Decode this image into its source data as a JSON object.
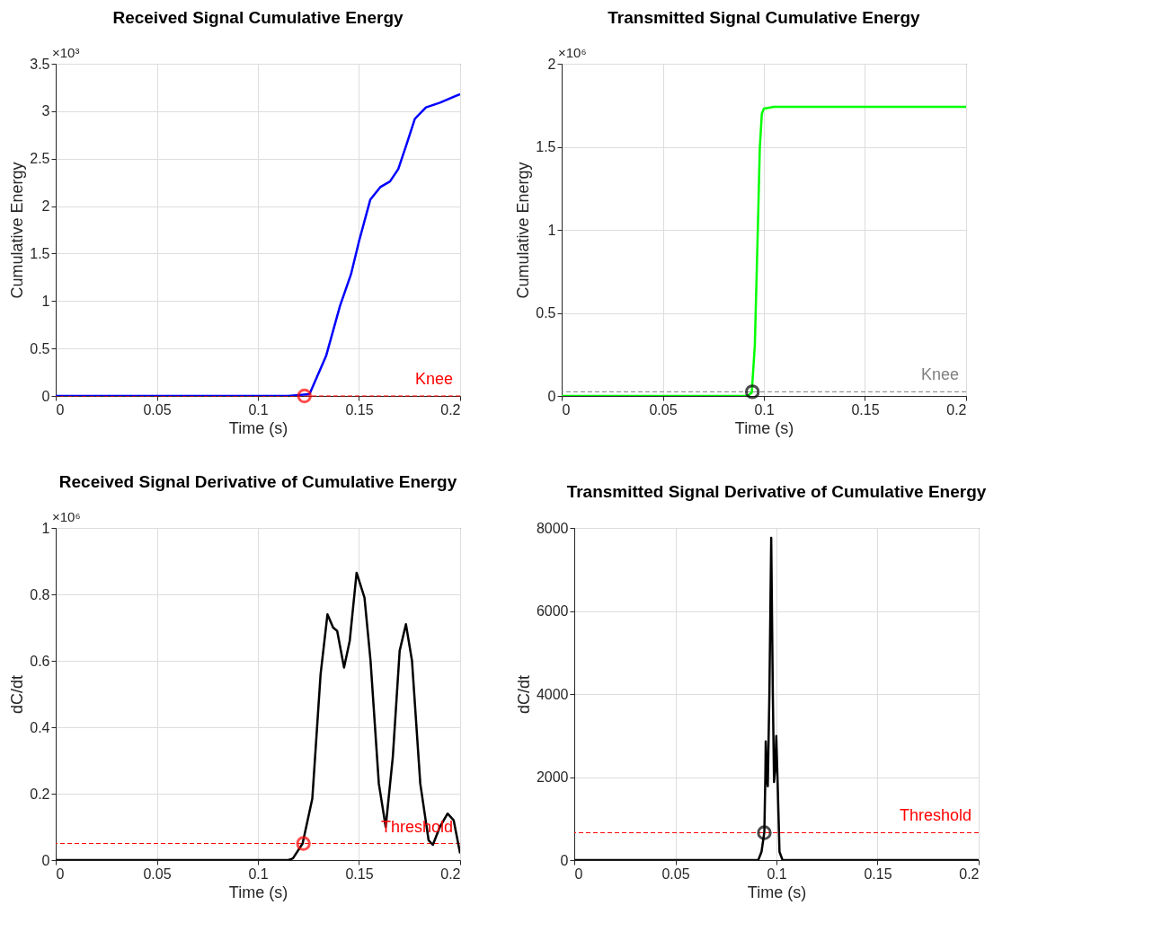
{
  "chart_data": [
    {
      "type": "line",
      "title": "Received Signal Cumulative Energy",
      "xlabel": "Time (s)",
      "ylabel": "Cumulative Energy",
      "annotations": [
        "×10³"
      ],
      "xlim": [
        0,
        0.2
      ],
      "ylim": [
        0,
        3.5
      ],
      "xticks": [
        0,
        0.05,
        0.1,
        0.15,
        0.2
      ],
      "yticks": [
        0,
        0.5,
        1,
        1.5,
        2,
        2.5,
        3,
        3.5
      ],
      "grid": true,
      "ref_lines": [
        {
          "axis": "y",
          "value": 0,
          "label": "Knee",
          "color": "#ff0000",
          "line_style": "dashed"
        }
      ],
      "series": [
        {
          "type": "line",
          "color": "#0000ff",
          "x": [
            0,
            0.115,
            0.1255,
            0.1337,
            0.1406,
            0.146,
            0.15,
            0.1556,
            0.1605,
            0.1653,
            0.1694,
            0.1735,
            0.1776,
            0.1831,
            0.19,
            0.2
          ],
          "values": [
            0,
            0,
            0.02,
            0.42,
            0.95,
            1.28,
            1.63,
            2.07,
            2.2,
            2.26,
            2.39,
            2.65,
            2.92,
            3.04,
            3.09,
            3.18
          ]
        },
        {
          "type": "scatter",
          "marker": "circle",
          "color": "#ff0000",
          "x": [
            0.123
          ],
          "values": [
            0
          ]
        }
      ]
    },
    {
      "type": "line",
      "title": "Transmitted Signal Cumulative Energy",
      "xlabel": "Time (s)",
      "ylabel": "Cumulative Energy",
      "annotations": [
        "×10⁶"
      ],
      "xlim": [
        0,
        0.2
      ],
      "ylim": [
        0,
        2
      ],
      "xticks": [
        0,
        0.05,
        0.1,
        0.15,
        0.2
      ],
      "yticks": [
        0,
        0.5,
        1,
        1.5,
        2
      ],
      "grid": true,
      "ref_lines": [
        {
          "axis": "y",
          "value": 0.025,
          "label": "Knee",
          "color": "#808080",
          "line_style": "dashed"
        }
      ],
      "series": [
        {
          "type": "line",
          "color": "#00ff00",
          "x": [
            0,
            0.092,
            0.094,
            0.0955,
            0.097,
            0.098,
            0.099,
            0.1,
            0.105,
            0.2
          ],
          "values": [
            0,
            0,
            0.02,
            0.3,
            1.0,
            1.5,
            1.7,
            1.73,
            1.74,
            1.74
          ]
        },
        {
          "type": "scatter",
          "marker": "circle",
          "color": "#000000",
          "x": [
            0.0943
          ],
          "values": [
            0.025
          ]
        }
      ]
    },
    {
      "type": "line",
      "title": "Received Signal Derivative of Cumulative Energy",
      "xlabel": "Time (s)",
      "ylabel": "dC/dt",
      "annotations": [
        "×10⁶"
      ],
      "xlim": [
        0,
        0.2
      ],
      "ylim": [
        0,
        1
      ],
      "xticks": [
        0,
        0.05,
        0.1,
        0.15,
        0.2
      ],
      "yticks": [
        0,
        0.2,
        0.4,
        0.6,
        0.8,
        1
      ],
      "grid": true,
      "ref_lines": [
        {
          "axis": "y",
          "value": 0.05,
          "label": "Threshold",
          "color": "#ff0000",
          "line_style": "dashed"
        }
      ],
      "series": [
        {
          "type": "line",
          "color": "#000000",
          "x": [
            0,
            0.115,
            0.1173,
            0.1221,
            0.1269,
            0.131,
            0.1344,
            0.1372,
            0.1392,
            0.1426,
            0.1454,
            0.1488,
            0.1527,
            0.1557,
            0.1598,
            0.1632,
            0.1667,
            0.1701,
            0.1732,
            0.1762,
            0.1803,
            0.1844,
            0.1865,
            0.19,
            0.1938,
            0.1968,
            0.2
          ],
          "values": [
            0,
            0,
            0.005,
            0.05,
            0.185,
            0.56,
            0.74,
            0.7,
            0.69,
            0.58,
            0.66,
            0.865,
            0.79,
            0.6,
            0.23,
            0.1,
            0.31,
            0.63,
            0.71,
            0.6,
            0.23,
            0.06,
            0.046,
            0.1,
            0.14,
            0.12,
            0.02
          ]
        },
        {
          "type": "scatter",
          "marker": "circle",
          "color": "#ff0000",
          "x": [
            0.1225
          ],
          "values": [
            0.05
          ]
        }
      ]
    },
    {
      "type": "line",
      "title": "Transmitted Signal Derivative of Cumulative Energy",
      "xlabel": "Time (s)",
      "ylabel": "dC/dt",
      "xlim": [
        0,
        0.2
      ],
      "ylim": [
        0,
        8000
      ],
      "xticks": [
        0,
        0.05,
        0.1,
        0.15,
        0.2
      ],
      "yticks": [
        0,
        2000,
        4000,
        6000,
        8000
      ],
      "grid": true,
      "ref_lines": [
        {
          "axis": "y",
          "value": 660,
          "label": "Threshold",
          "color": "#ff0000",
          "line_style": "dashed"
        }
      ],
      "series": [
        {
          "type": "line",
          "color": "#000000",
          "x": [
            0,
            0.091,
            0.0926,
            0.094,
            0.0945,
            0.0947,
            0.0952,
            0.0957,
            0.0965,
            0.0974,
            0.0982,
            0.0988,
            0.0994,
            0.0999,
            0.1005,
            0.1015,
            0.103,
            0.2
          ],
          "values": [
            0,
            0,
            200,
            670,
            2000,
            2860,
            2000,
            1780,
            4000,
            7760,
            4000,
            1880,
            2200,
            2990,
            2000,
            200,
            0,
            0
          ]
        },
        {
          "type": "scatter",
          "marker": "circle",
          "color": "#000000",
          "x": [
            0.094
          ],
          "values": [
            660
          ]
        }
      ]
    }
  ]
}
